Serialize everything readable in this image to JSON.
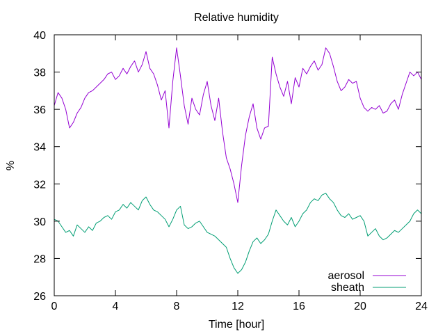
{
  "chart_data": {
    "type": "line",
    "title": "Relative humidity",
    "xlabel": "Time [hour]",
    "ylabel": "%",
    "xlim": [
      0,
      24
    ],
    "ylim": [
      26,
      40
    ],
    "xticks": [
      0,
      4,
      8,
      12,
      16,
      20,
      24
    ],
    "yticks": [
      26,
      28,
      30,
      32,
      34,
      36,
      38,
      40
    ],
    "grid": false,
    "legend_position": "bottom-right",
    "series": [
      {
        "name": "aerosol",
        "color": "#9400d3",
        "x": [
          0,
          0.25,
          0.5,
          0.75,
          1,
          1.25,
          1.5,
          1.75,
          2,
          2.25,
          2.5,
          2.75,
          3,
          3.25,
          3.5,
          3.75,
          4,
          4.25,
          4.5,
          4.75,
          5,
          5.25,
          5.5,
          5.75,
          6,
          6.25,
          6.5,
          6.75,
          7,
          7.25,
          7.5,
          7.75,
          8,
          8.25,
          8.5,
          8.75,
          9,
          9.25,
          9.5,
          9.75,
          10,
          10.25,
          10.5,
          10.75,
          11,
          11.25,
          11.5,
          11.75,
          12,
          12.25,
          12.5,
          12.75,
          13,
          13.25,
          13.5,
          13.75,
          14,
          14.25,
          14.5,
          14.75,
          15,
          15.25,
          15.5,
          15.75,
          16,
          16.25,
          16.5,
          16.75,
          17,
          17.25,
          17.5,
          17.75,
          18,
          18.25,
          18.5,
          18.75,
          19,
          19.25,
          19.5,
          19.75,
          20,
          20.25,
          20.5,
          20.75,
          21,
          21.25,
          21.5,
          21.75,
          22,
          22.25,
          22.5,
          22.75,
          23,
          23.25,
          23.5,
          23.75,
          24
        ],
        "y": [
          36.2,
          36.9,
          36.6,
          36.0,
          35.0,
          35.3,
          35.8,
          36.1,
          36.6,
          36.9,
          37.0,
          37.2,
          37.4,
          37.6,
          37.9,
          38.0,
          37.6,
          37.8,
          38.2,
          37.9,
          38.3,
          38.6,
          38.0,
          38.4,
          39.1,
          38.2,
          37.9,
          37.3,
          36.5,
          37.0,
          35.0,
          37.5,
          39.3,
          37.8,
          36.2,
          35.2,
          36.6,
          36.0,
          35.7,
          36.8,
          37.5,
          36.2,
          35.4,
          36.6,
          34.8,
          33.4,
          32.8,
          32.0,
          31.0,
          33.0,
          34.6,
          35.6,
          36.3,
          35.0,
          34.4,
          35.0,
          35.1,
          38.8,
          37.9,
          37.2,
          36.7,
          37.5,
          36.3,
          37.7,
          37.2,
          38.2,
          37.9,
          38.3,
          38.6,
          38.1,
          38.4,
          39.3,
          39.0,
          38.3,
          37.5,
          37.0,
          37.2,
          37.6,
          37.4,
          37.5,
          36.6,
          36.1,
          35.9,
          36.1,
          36.0,
          36.2,
          35.8,
          35.9,
          36.3,
          36.5,
          36.0,
          36.8,
          37.4,
          38.0,
          37.8,
          38.0,
          37.6
        ]
      },
      {
        "name": "sheath",
        "color": "#009e73",
        "x": [
          0,
          0.25,
          0.5,
          0.75,
          1,
          1.25,
          1.5,
          1.75,
          2,
          2.25,
          2.5,
          2.75,
          3,
          3.25,
          3.5,
          3.75,
          4,
          4.25,
          4.5,
          4.75,
          5,
          5.25,
          5.5,
          5.75,
          6,
          6.25,
          6.5,
          6.75,
          7,
          7.25,
          7.5,
          7.75,
          8,
          8.25,
          8.5,
          8.75,
          9,
          9.25,
          9.5,
          9.75,
          10,
          10.25,
          10.5,
          10.75,
          11,
          11.25,
          11.5,
          11.75,
          12,
          12.25,
          12.5,
          12.75,
          13,
          13.25,
          13.5,
          13.75,
          14,
          14.25,
          14.5,
          14.75,
          15,
          15.25,
          15.5,
          15.75,
          16,
          16.25,
          16.5,
          16.75,
          17,
          17.25,
          17.5,
          17.75,
          18,
          18.25,
          18.5,
          18.75,
          19,
          19.25,
          19.5,
          19.75,
          20,
          20.25,
          20.5,
          20.75,
          21,
          21.25,
          21.5,
          21.75,
          22,
          22.25,
          22.5,
          22.75,
          23,
          23.25,
          23.5,
          23.75,
          24
        ],
        "y": [
          30.1,
          30.0,
          29.7,
          29.4,
          29.5,
          29.2,
          29.8,
          29.6,
          29.4,
          29.7,
          29.5,
          29.9,
          30.0,
          30.2,
          30.3,
          30.1,
          30.5,
          30.6,
          30.9,
          30.7,
          31.0,
          30.8,
          30.6,
          31.1,
          31.3,
          30.9,
          30.6,
          30.5,
          30.3,
          30.1,
          29.7,
          30.1,
          30.6,
          30.8,
          29.8,
          29.6,
          29.7,
          29.9,
          30.0,
          29.7,
          29.4,
          29.3,
          29.2,
          29.0,
          28.8,
          28.6,
          28.0,
          27.5,
          27.2,
          27.4,
          27.8,
          28.4,
          28.9,
          29.1,
          28.8,
          29.0,
          29.3,
          30.0,
          30.6,
          30.3,
          30.0,
          29.8,
          30.2,
          29.7,
          30.0,
          30.4,
          30.6,
          31.0,
          31.2,
          31.1,
          31.4,
          31.5,
          31.2,
          31.0,
          30.6,
          30.3,
          30.2,
          30.4,
          30.1,
          30.2,
          30.3,
          30.0,
          29.2,
          29.4,
          29.6,
          29.2,
          29.0,
          29.1,
          29.3,
          29.5,
          29.4,
          29.6,
          29.8,
          30.0,
          30.4,
          30.6,
          30.4
        ]
      }
    ]
  }
}
